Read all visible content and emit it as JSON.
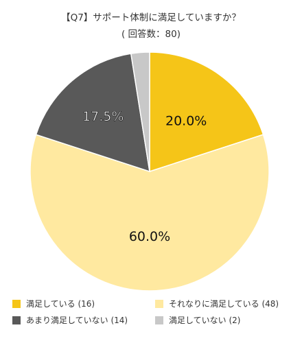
{
  "title_line1": "【Q7】サポート体制に満足していますか？",
  "title_line2": "( 回答数：80)",
  "chart_data": {
    "type": "pie",
    "title": "【Q7】サポート体制に満足していますか？",
    "subtitle": "( 回答数：80)",
    "total": 80,
    "start_angle": "12 o'clock",
    "direction": "clockwise",
    "slices": [
      {
        "name": "満足している",
        "count": 16,
        "percent": 20.0,
        "label": "20.0%",
        "color": "#F5C518",
        "legend": "満足している (16)"
      },
      {
        "name": "それなりに満足している",
        "count": 48,
        "percent": 60.0,
        "label": "60.0%",
        "color": "#FFE9A0",
        "legend": "それなりに満足している (48)"
      },
      {
        "name": "あまり満足していない",
        "count": 14,
        "percent": 17.5,
        "label": "17.5%",
        "color": "#595959",
        "legend": "あまり満足していない (14)"
      },
      {
        "name": "満足していない",
        "count": 2,
        "percent": 2.5,
        "label": "",
        "color": "#C8C8C8",
        "legend": "満足していない (2)"
      }
    ],
    "legend_position": "bottom"
  }
}
